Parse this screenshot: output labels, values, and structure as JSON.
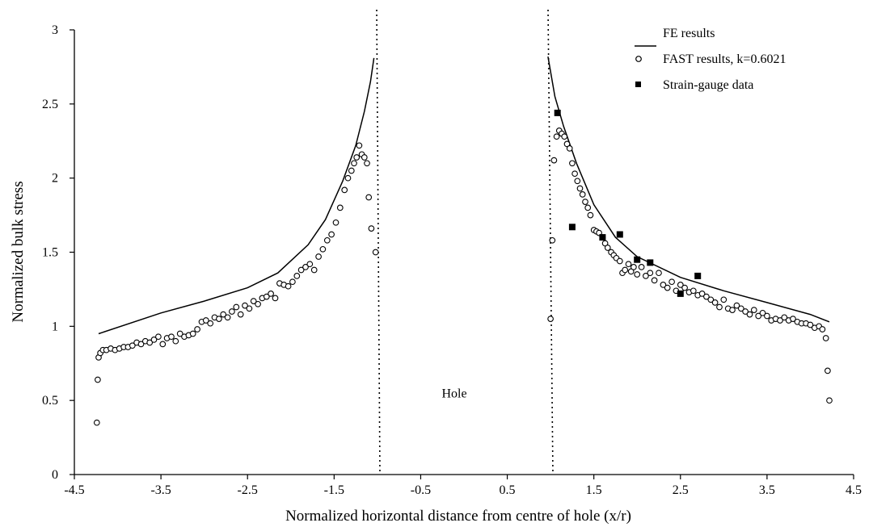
{
  "chart_data": {
    "type": "scatter",
    "title": "",
    "xlabel": "Normalized horizontal distance from centre of hole (x/r)",
    "ylabel": "Normalized bulk stress",
    "xlim": [
      -4.5,
      4.5
    ],
    "ylim": [
      0,
      3
    ],
    "x_ticks": [
      -4.5,
      -3.5,
      -2.5,
      -1.5,
      -0.5,
      0.5,
      1.5,
      2.5,
      3.5,
      4.5
    ],
    "x_tick_labels": [
      "-4.5",
      "-3.5",
      "-2.5",
      "-1.5",
      "-0.5",
      "0.5",
      "1.5",
      "2.5",
      "3.5",
      "4.5"
    ],
    "y_ticks": [
      0,
      0.5,
      1,
      1.5,
      2,
      2.5,
      3
    ],
    "y_tick_labels": [
      "0",
      "0.5",
      "1",
      "1.5",
      "2",
      "2.5",
      "3"
    ],
    "grid": false,
    "legend_position": "top-right",
    "annotations": [
      {
        "text": "Hole",
        "x": 0,
        "y": 0.52
      }
    ],
    "hole_boundaries": [
      -1,
      1
    ],
    "series": [
      {
        "name": "FE results",
        "kind": "line",
        "color": "#000000",
        "segments": [
          [
            [
              -4.22,
              0.95
            ],
            [
              -3.5,
              1.09
            ],
            [
              -3.0,
              1.17
            ],
            [
              -2.5,
              1.26
            ],
            [
              -2.15,
              1.36
            ],
            [
              -1.8,
              1.55
            ],
            [
              -1.6,
              1.72
            ],
            [
              -1.4,
              1.98
            ],
            [
              -1.25,
              2.22
            ],
            [
              -1.15,
              2.45
            ],
            [
              -1.08,
              2.65
            ],
            [
              -1.04,
              2.81
            ]
          ],
          [
            [
              0.97,
              2.82
            ],
            [
              1.05,
              2.55
            ],
            [
              1.15,
              2.35
            ],
            [
              1.3,
              2.1
            ],
            [
              1.5,
              1.82
            ],
            [
              1.75,
              1.6
            ],
            [
              2.0,
              1.47
            ],
            [
              2.5,
              1.33
            ],
            [
              3.0,
              1.24
            ],
            [
              3.5,
              1.16
            ],
            [
              4.0,
              1.08
            ],
            [
              4.22,
              1.03
            ]
          ]
        ]
      },
      {
        "name": "FAST results, k=0.6021",
        "kind": "scatter",
        "marker": "open-circle",
        "points": [
          [
            -4.24,
            0.35
          ],
          [
            -4.23,
            0.64
          ],
          [
            -4.22,
            0.79
          ],
          [
            -4.2,
            0.82
          ],
          [
            -4.17,
            0.84
          ],
          [
            -4.13,
            0.84
          ],
          [
            -4.08,
            0.85
          ],
          [
            -4.03,
            0.84
          ],
          [
            -3.98,
            0.85
          ],
          [
            -3.93,
            0.86
          ],
          [
            -3.88,
            0.86
          ],
          [
            -3.83,
            0.87
          ],
          [
            -3.78,
            0.89
          ],
          [
            -3.73,
            0.88
          ],
          [
            -3.68,
            0.9
          ],
          [
            -3.63,
            0.89
          ],
          [
            -3.58,
            0.91
          ],
          [
            -3.53,
            0.93
          ],
          [
            -3.48,
            0.88
          ],
          [
            -3.43,
            0.92
          ],
          [
            -3.38,
            0.93
          ],
          [
            -3.33,
            0.9
          ],
          [
            -3.28,
            0.95
          ],
          [
            -3.23,
            0.93
          ],
          [
            -3.18,
            0.94
          ],
          [
            -3.13,
            0.95
          ],
          [
            -3.08,
            0.98
          ],
          [
            -3.03,
            1.03
          ],
          [
            -2.98,
            1.04
          ],
          [
            -2.93,
            1.02
          ],
          [
            -2.88,
            1.06
          ],
          [
            -2.83,
            1.05
          ],
          [
            -2.78,
            1.08
          ],
          [
            -2.73,
            1.06
          ],
          [
            -2.68,
            1.1
          ],
          [
            -2.63,
            1.13
          ],
          [
            -2.58,
            1.08
          ],
          [
            -2.53,
            1.14
          ],
          [
            -2.48,
            1.12
          ],
          [
            -2.43,
            1.17
          ],
          [
            -2.38,
            1.15
          ],
          [
            -2.33,
            1.19
          ],
          [
            -2.28,
            1.2
          ],
          [
            -2.23,
            1.22
          ],
          [
            -2.18,
            1.19
          ],
          [
            -2.13,
            1.29
          ],
          [
            -2.08,
            1.28
          ],
          [
            -2.03,
            1.27
          ],
          [
            -1.98,
            1.3
          ],
          [
            -1.93,
            1.34
          ],
          [
            -1.88,
            1.38
          ],
          [
            -1.83,
            1.4
          ],
          [
            -1.78,
            1.42
          ],
          [
            -1.73,
            1.38
          ],
          [
            -1.68,
            1.47
          ],
          [
            -1.63,
            1.52
          ],
          [
            -1.58,
            1.58
          ],
          [
            -1.53,
            1.62
          ],
          [
            -1.48,
            1.7
          ],
          [
            -1.43,
            1.8
          ],
          [
            -1.38,
            1.92
          ],
          [
            -1.34,
            2.0
          ],
          [
            -1.3,
            2.05
          ],
          [
            -1.27,
            2.1
          ],
          [
            -1.24,
            2.14
          ],
          [
            -1.21,
            2.22
          ],
          [
            -1.18,
            2.16
          ],
          [
            -1.15,
            2.14
          ],
          [
            -1.12,
            2.1
          ],
          [
            -1.1,
            1.87
          ],
          [
            -1.07,
            1.66
          ],
          [
            -1.02,
            1.5
          ],
          [
            1.0,
            1.05
          ],
          [
            1.02,
            1.58
          ],
          [
            1.04,
            2.12
          ],
          [
            1.07,
            2.28
          ],
          [
            1.1,
            2.32
          ],
          [
            1.13,
            2.3
          ],
          [
            1.16,
            2.28
          ],
          [
            1.19,
            2.23
          ],
          [
            1.22,
            2.2
          ],
          [
            1.25,
            2.1
          ],
          [
            1.28,
            2.03
          ],
          [
            1.31,
            1.98
          ],
          [
            1.34,
            1.93
          ],
          [
            1.37,
            1.89
          ],
          [
            1.4,
            1.84
          ],
          [
            1.43,
            1.8
          ],
          [
            1.46,
            1.75
          ],
          [
            1.5,
            1.65
          ],
          [
            1.53,
            1.64
          ],
          [
            1.56,
            1.63
          ],
          [
            1.6,
            1.6
          ],
          [
            1.63,
            1.56
          ],
          [
            1.66,
            1.53
          ],
          [
            1.7,
            1.5
          ],
          [
            1.73,
            1.48
          ],
          [
            1.76,
            1.46
          ],
          [
            1.8,
            1.44
          ],
          [
            1.83,
            1.36
          ],
          [
            1.86,
            1.38
          ],
          [
            1.9,
            1.42
          ],
          [
            1.93,
            1.37
          ],
          [
            1.96,
            1.4
          ],
          [
            2.0,
            1.35
          ],
          [
            2.05,
            1.4
          ],
          [
            2.1,
            1.34
          ],
          [
            2.15,
            1.36
          ],
          [
            2.2,
            1.31
          ],
          [
            2.25,
            1.36
          ],
          [
            2.3,
            1.28
          ],
          [
            2.35,
            1.26
          ],
          [
            2.4,
            1.3
          ],
          [
            2.45,
            1.24
          ],
          [
            2.5,
            1.28
          ],
          [
            2.55,
            1.26
          ],
          [
            2.6,
            1.23
          ],
          [
            2.65,
            1.24
          ],
          [
            2.7,
            1.21
          ],
          [
            2.75,
            1.22
          ],
          [
            2.8,
            1.2
          ],
          [
            2.85,
            1.18
          ],
          [
            2.9,
            1.16
          ],
          [
            2.95,
            1.13
          ],
          [
            3.0,
            1.18
          ],
          [
            3.05,
            1.12
          ],
          [
            3.1,
            1.11
          ],
          [
            3.15,
            1.14
          ],
          [
            3.2,
            1.12
          ],
          [
            3.25,
            1.1
          ],
          [
            3.3,
            1.08
          ],
          [
            3.35,
            1.11
          ],
          [
            3.4,
            1.07
          ],
          [
            3.45,
            1.09
          ],
          [
            3.5,
            1.07
          ],
          [
            3.55,
            1.04
          ],
          [
            3.6,
            1.05
          ],
          [
            3.65,
            1.04
          ],
          [
            3.7,
            1.06
          ],
          [
            3.75,
            1.04
          ],
          [
            3.8,
            1.05
          ],
          [
            3.85,
            1.03
          ],
          [
            3.9,
            1.02
          ],
          [
            3.95,
            1.02
          ],
          [
            4.0,
            1.01
          ],
          [
            4.05,
            0.99
          ],
          [
            4.1,
            1.0
          ],
          [
            4.14,
            0.98
          ],
          [
            4.18,
            0.92
          ],
          [
            4.2,
            0.7
          ],
          [
            4.22,
            0.5
          ]
        ]
      },
      {
        "name": "Strain-gauge data",
        "kind": "scatter",
        "marker": "filled-square",
        "points": [
          [
            1.08,
            2.44
          ],
          [
            1.25,
            1.67
          ],
          [
            1.6,
            1.6
          ],
          [
            1.8,
            1.62
          ],
          [
            2.0,
            1.45
          ],
          [
            2.15,
            1.43
          ],
          [
            2.5,
            1.22
          ],
          [
            2.7,
            1.34
          ]
        ]
      }
    ]
  }
}
